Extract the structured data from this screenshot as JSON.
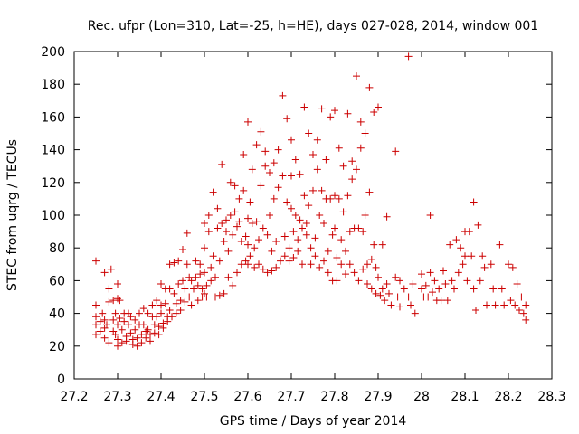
{
  "chart_data": {
    "type": "scatter",
    "title": "Rec. ufpr (Lon=310, Lat=-25, h=HE), days 027-028, 2014, window 001",
    "xlabel": "GPS time / Days of year 2014",
    "ylabel": "STEC from uqrg / TECUs",
    "xlim": [
      27.2,
      28.3
    ],
    "ylim": [
      0,
      200
    ],
    "xticks": [
      "27.2",
      "27.3",
      "27.4",
      "27.5",
      "27.6",
      "27.7",
      "27.8",
      "27.9",
      "28",
      "28.1",
      "28.2",
      "28.3"
    ],
    "yticks": [
      "0",
      "20",
      "40",
      "60",
      "80",
      "100",
      "120",
      "140",
      "160",
      "180",
      "200"
    ],
    "grid": false,
    "legend": "none",
    "marker": "plus",
    "color": "#cc0000",
    "points": [
      [
        27.25,
        72
      ],
      [
        27.25,
        45
      ],
      [
        27.25,
        38
      ],
      [
        27.25,
        33
      ],
      [
        27.25,
        27
      ],
      [
        27.26,
        35
      ],
      [
        27.26,
        29
      ],
      [
        27.265,
        40
      ],
      [
        27.27,
        65
      ],
      [
        27.27,
        36
      ],
      [
        27.27,
        31
      ],
      [
        27.27,
        25
      ],
      [
        27.275,
        33
      ],
      [
        27.28,
        55
      ],
      [
        27.28,
        47
      ],
      [
        27.28,
        22
      ],
      [
        27.285,
        67
      ],
      [
        27.29,
        48
      ],
      [
        27.29,
        36
      ],
      [
        27.29,
        29
      ],
      [
        27.295,
        40
      ],
      [
        27.295,
        27
      ],
      [
        27.3,
        49
      ],
      [
        27.3,
        58
      ],
      [
        27.3,
        33
      ],
      [
        27.3,
        24
      ],
      [
        27.3,
        20
      ],
      [
        27.305,
        48
      ],
      [
        27.305,
        37
      ],
      [
        27.31,
        30
      ],
      [
        27.31,
        22
      ],
      [
        27.315,
        35
      ],
      [
        27.315,
        40
      ],
      [
        27.32,
        26
      ],
      [
        27.32,
        23
      ],
      [
        27.325,
        40
      ],
      [
        27.325,
        33
      ],
      [
        27.33,
        38
      ],
      [
        27.33,
        28
      ],
      [
        27.335,
        24
      ],
      [
        27.335,
        21
      ],
      [
        27.34,
        36
      ],
      [
        27.34,
        30
      ],
      [
        27.345,
        25
      ],
      [
        27.345,
        20
      ],
      [
        27.35,
        40
      ],
      [
        27.35,
        33
      ],
      [
        27.355,
        27
      ],
      [
        27.355,
        22
      ],
      [
        27.36,
        43
      ],
      [
        27.36,
        33
      ],
      [
        27.365,
        29
      ],
      [
        27.365,
        25
      ],
      [
        27.37,
        40
      ],
      [
        27.37,
        30
      ],
      [
        27.375,
        23
      ],
      [
        27.375,
        27
      ],
      [
        27.38,
        45
      ],
      [
        27.38,
        38
      ],
      [
        27.385,
        33
      ],
      [
        27.385,
        28
      ],
      [
        27.39,
        48
      ],
      [
        27.39,
        38
      ],
      [
        27.395,
        32
      ],
      [
        27.395,
        27
      ],
      [
        27.4,
        58
      ],
      [
        27.4,
        45
      ],
      [
        27.4,
        40
      ],
      [
        27.405,
        34
      ],
      [
        27.405,
        31
      ],
      [
        27.41,
        55
      ],
      [
        27.41,
        46
      ],
      [
        27.415,
        38
      ],
      [
        27.415,
        35
      ],
      [
        27.42,
        70
      ],
      [
        27.42,
        55
      ],
      [
        27.42,
        42
      ],
      [
        27.425,
        38
      ],
      [
        27.43,
        71
      ],
      [
        27.43,
        52
      ],
      [
        27.435,
        46
      ],
      [
        27.435,
        40
      ],
      [
        27.44,
        72
      ],
      [
        27.44,
        58
      ],
      [
        27.445,
        48
      ],
      [
        27.445,
        42
      ],
      [
        27.45,
        79
      ],
      [
        27.45,
        60
      ],
      [
        27.455,
        55
      ],
      [
        27.455,
        47
      ],
      [
        27.46,
        89
      ],
      [
        27.46,
        70
      ],
      [
        27.465,
        62
      ],
      [
        27.465,
        50
      ],
      [
        27.47,
        60
      ],
      [
        27.47,
        45
      ],
      [
        27.475,
        55
      ],
      [
        27.48,
        72
      ],
      [
        27.48,
        62
      ],
      [
        27.485,
        57
      ],
      [
        27.485,
        48
      ],
      [
        27.49,
        70
      ],
      [
        27.49,
        64
      ],
      [
        27.495,
        55
      ],
      [
        27.495,
        50
      ],
      [
        27.5,
        95
      ],
      [
        27.5,
        80
      ],
      [
        27.5,
        65
      ],
      [
        27.5,
        52
      ],
      [
        27.505,
        57
      ],
      [
        27.505,
        50
      ],
      [
        27.51,
        100
      ],
      [
        27.51,
        90
      ],
      [
        27.515,
        68
      ],
      [
        27.515,
        60
      ],
      [
        27.52,
        114
      ],
      [
        27.52,
        75
      ],
      [
        27.525,
        62
      ],
      [
        27.525,
        50
      ],
      [
        27.53,
        104
      ],
      [
        27.53,
        92
      ],
      [
        27.535,
        72
      ],
      [
        27.535,
        51
      ],
      [
        27.54,
        131
      ],
      [
        27.54,
        95
      ],
      [
        27.545,
        84
      ],
      [
        27.545,
        52
      ],
      [
        27.55,
        97
      ],
      [
        27.55,
        90
      ],
      [
        27.555,
        78
      ],
      [
        27.555,
        62
      ],
      [
        27.56,
        120
      ],
      [
        27.56,
        100
      ],
      [
        27.565,
        88
      ],
      [
        27.565,
        57
      ],
      [
        27.57,
        118
      ],
      [
        27.57,
        102
      ],
      [
        27.575,
        93
      ],
      [
        27.575,
        65
      ],
      [
        27.58,
        110
      ],
      [
        27.58,
        96
      ],
      [
        27.585,
        84
      ],
      [
        27.585,
        70
      ],
      [
        27.59,
        137
      ],
      [
        27.59,
        115
      ],
      [
        27.595,
        87
      ],
      [
        27.595,
        72
      ],
      [
        27.6,
        157
      ],
      [
        27.6,
        98
      ],
      [
        27.6,
        82
      ],
      [
        27.6,
        70
      ],
      [
        27.605,
        108
      ],
      [
        27.605,
        75
      ],
      [
        27.61,
        128
      ],
      [
        27.61,
        95
      ],
      [
        27.615,
        80
      ],
      [
        27.615,
        68
      ],
      [
        27.62,
        143
      ],
      [
        27.62,
        96
      ],
      [
        27.625,
        85
      ],
      [
        27.625,
        70
      ],
      [
        27.63,
        151
      ],
      [
        27.63,
        118
      ],
      [
        27.635,
        92
      ],
      [
        27.635,
        67
      ],
      [
        27.64,
        139
      ],
      [
        27.64,
        130
      ],
      [
        27.645,
        88
      ],
      [
        27.645,
        65
      ],
      [
        27.65,
        126
      ],
      [
        27.65,
        100
      ],
      [
        27.655,
        78
      ],
      [
        27.655,
        66
      ],
      [
        27.66,
        132
      ],
      [
        27.66,
        110
      ],
      [
        27.665,
        84
      ],
      [
        27.665,
        68
      ],
      [
        27.67,
        140
      ],
      [
        27.67,
        117
      ],
      [
        27.675,
        72
      ],
      [
        27.68,
        173
      ],
      [
        27.68,
        124
      ],
      [
        27.685,
        87
      ],
      [
        27.685,
        75
      ],
      [
        27.69,
        159
      ],
      [
        27.69,
        108
      ],
      [
        27.695,
        80
      ],
      [
        27.695,
        72
      ],
      [
        27.7,
        146
      ],
      [
        27.7,
        124
      ],
      [
        27.7,
        104
      ],
      [
        27.705,
        90
      ],
      [
        27.705,
        74
      ],
      [
        27.71,
        134
      ],
      [
        27.71,
        100
      ],
      [
        27.715,
        85
      ],
      [
        27.715,
        78
      ],
      [
        27.72,
        125
      ],
      [
        27.72,
        97
      ],
      [
        27.725,
        92
      ],
      [
        27.725,
        70
      ],
      [
        27.73,
        166
      ],
      [
        27.73,
        112
      ],
      [
        27.735,
        95
      ],
      [
        27.735,
        88
      ],
      [
        27.74,
        150
      ],
      [
        27.74,
        106
      ],
      [
        27.745,
        80
      ],
      [
        27.745,
        70
      ],
      [
        27.75,
        137
      ],
      [
        27.75,
        115
      ],
      [
        27.755,
        86
      ],
      [
        27.755,
        75
      ],
      [
        27.76,
        146
      ],
      [
        27.76,
        128
      ],
      [
        27.765,
        100
      ],
      [
        27.765,
        68
      ],
      [
        27.77,
        165
      ],
      [
        27.77,
        115
      ],
      [
        27.775,
        95
      ],
      [
        27.775,
        72
      ],
      [
        27.78,
        134
      ],
      [
        27.78,
        110
      ],
      [
        27.785,
        78
      ],
      [
        27.785,
        65
      ],
      [
        27.79,
        160
      ],
      [
        27.79,
        110
      ],
      [
        27.795,
        88
      ],
      [
        27.795,
        60
      ],
      [
        27.8,
        164
      ],
      [
        27.8,
        112
      ],
      [
        27.8,
        92
      ],
      [
        27.805,
        74
      ],
      [
        27.805,
        60
      ],
      [
        27.81,
        141
      ],
      [
        27.81,
        110
      ],
      [
        27.815,
        85
      ],
      [
        27.815,
        70
      ],
      [
        27.82,
        130
      ],
      [
        27.82,
        102
      ],
      [
        27.825,
        78
      ],
      [
        27.825,
        64
      ],
      [
        27.83,
        162
      ],
      [
        27.83,
        112
      ],
      [
        27.835,
        90
      ],
      [
        27.835,
        70
      ],
      [
        27.84,
        133
      ],
      [
        27.84,
        122
      ],
      [
        27.845,
        92
      ],
      [
        27.845,
        65
      ],
      [
        27.85,
        185
      ],
      [
        27.85,
        128
      ],
      [
        27.855,
        92
      ],
      [
        27.855,
        60
      ],
      [
        27.86,
        157
      ],
      [
        27.86,
        141
      ],
      [
        27.865,
        90
      ],
      [
        27.865,
        67
      ],
      [
        27.87,
        150
      ],
      [
        27.87,
        100
      ],
      [
        27.875,
        70
      ],
      [
        27.875,
        58
      ],
      [
        27.88,
        178
      ],
      [
        27.88,
        114
      ],
      [
        27.885,
        73
      ],
      [
        27.885,
        55
      ],
      [
        27.89,
        163
      ],
      [
        27.89,
        82
      ],
      [
        27.895,
        68
      ],
      [
        27.895,
        52
      ],
      [
        27.9,
        166
      ],
      [
        27.9,
        62
      ],
      [
        27.905,
        51
      ],
      [
        27.91,
        82
      ],
      [
        27.91,
        55
      ],
      [
        27.915,
        48
      ],
      [
        27.92,
        99
      ],
      [
        27.92,
        58
      ],
      [
        27.925,
        52
      ],
      [
        27.93,
        45
      ],
      [
        27.94,
        139
      ],
      [
        27.94,
        62
      ],
      [
        27.945,
        50
      ],
      [
        27.95,
        60
      ],
      [
        27.95,
        44
      ],
      [
        27.96,
        55
      ],
      [
        27.97,
        197
      ],
      [
        27.97,
        50
      ],
      [
        27.975,
        45
      ],
      [
        27.98,
        58
      ],
      [
        27.985,
        40
      ],
      [
        28.0,
        64
      ],
      [
        28.0,
        55
      ],
      [
        28.005,
        50
      ],
      [
        28.01,
        57
      ],
      [
        28.015,
        50
      ],
      [
        28.02,
        100
      ],
      [
        28.02,
        65
      ],
      [
        28.025,
        53
      ],
      [
        28.03,
        60
      ],
      [
        28.035,
        48
      ],
      [
        28.04,
        55
      ],
      [
        28.045,
        48
      ],
      [
        28.05,
        66
      ],
      [
        28.055,
        58
      ],
      [
        28.06,
        48
      ],
      [
        28.065,
        82
      ],
      [
        28.07,
        60
      ],
      [
        28.075,
        55
      ],
      [
        28.08,
        85
      ],
      [
        28.085,
        65
      ],
      [
        28.09,
        80
      ],
      [
        28.095,
        70
      ],
      [
        28.1,
        90
      ],
      [
        28.1,
        75
      ],
      [
        28.105,
        60
      ],
      [
        28.11,
        90
      ],
      [
        28.115,
        75
      ],
      [
        28.12,
        108
      ],
      [
        28.12,
        55
      ],
      [
        28.125,
        42
      ],
      [
        28.13,
        94
      ],
      [
        28.135,
        60
      ],
      [
        28.14,
        75
      ],
      [
        28.145,
        68
      ],
      [
        28.15,
        45
      ],
      [
        28.16,
        70
      ],
      [
        28.165,
        55
      ],
      [
        28.17,
        45
      ],
      [
        28.18,
        82
      ],
      [
        28.185,
        55
      ],
      [
        28.19,
        45
      ],
      [
        28.2,
        70
      ],
      [
        28.205,
        48
      ],
      [
        28.21,
        68
      ],
      [
        28.215,
        45
      ],
      [
        28.22,
        58
      ],
      [
        28.225,
        42
      ],
      [
        28.23,
        50
      ],
      [
        28.235,
        40
      ],
      [
        28.24,
        45
      ],
      [
        28.24,
        36
      ]
    ]
  }
}
